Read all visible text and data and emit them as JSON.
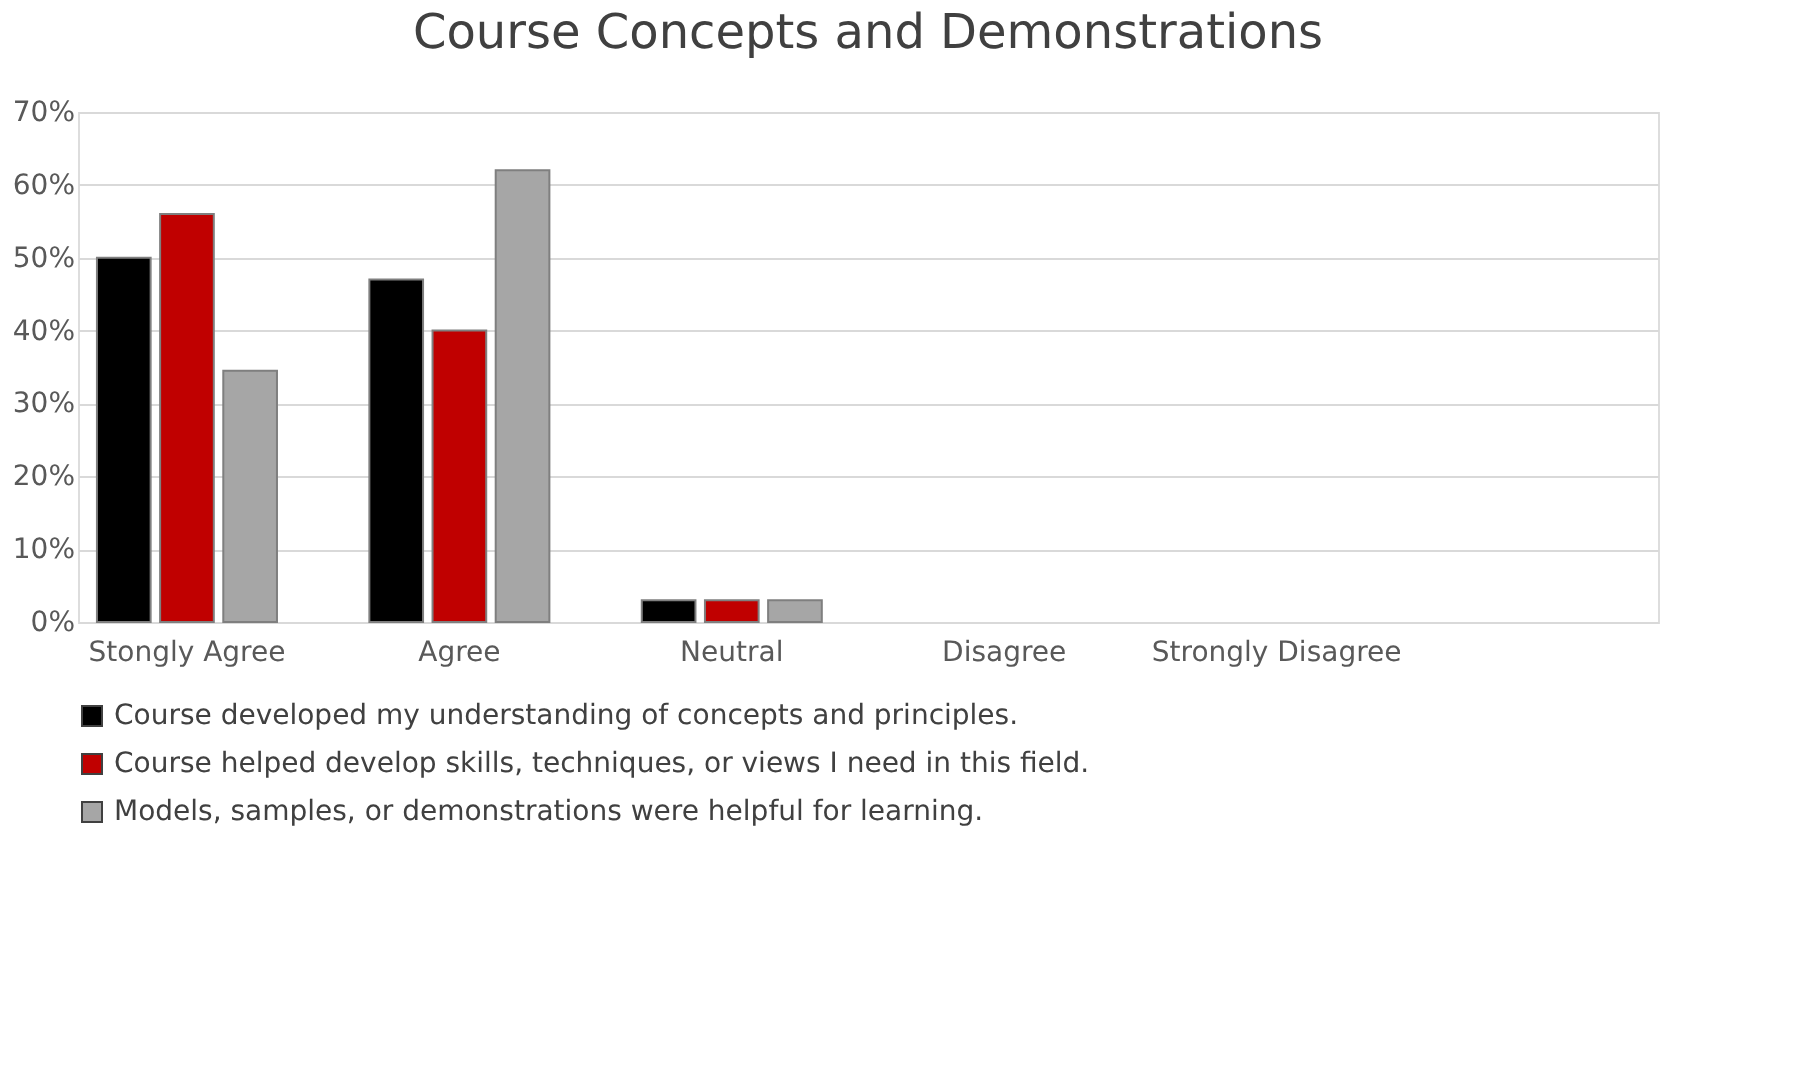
{
  "chart_data": {
    "type": "bar",
    "title": "Course Concepts and Demonstrations",
    "categories": [
      "Stongly Agree",
      "Agree",
      "Neutral",
      "Disagree",
      "Strongly Disagree",
      null
    ],
    "series": [
      {
        "name": "Course developed my understanding of concepts and principles.",
        "color": "#000000",
        "values": [
          50,
          47,
          3,
          null,
          null,
          null
        ]
      },
      {
        "name": "Course helped develop skills, techniques, or views I need in this field.",
        "color": "#c00000",
        "values": [
          56,
          40,
          3,
          null,
          null,
          null
        ]
      },
      {
        "name": "Models, samples, or demonstrations were helpful for learning.",
        "color": "#a6a6a6",
        "values": [
          34.5,
          62,
          3,
          null,
          null,
          null
        ]
      }
    ],
    "ylim": [
      0,
      70
    ],
    "yticks": [
      {
        "value": 0,
        "label": "0%"
      },
      {
        "value": 10,
        "label": "10%"
      },
      {
        "value": 20,
        "label": "20%"
      },
      {
        "value": 30,
        "label": "30%"
      },
      {
        "value": 40,
        "label": "40%"
      },
      {
        "value": 50,
        "label": "50%"
      },
      {
        "value": 60,
        "label": "60%"
      },
      {
        "value": 70,
        "label": "70%"
      }
    ],
    "grid": "y",
    "legend": "bottom"
  }
}
